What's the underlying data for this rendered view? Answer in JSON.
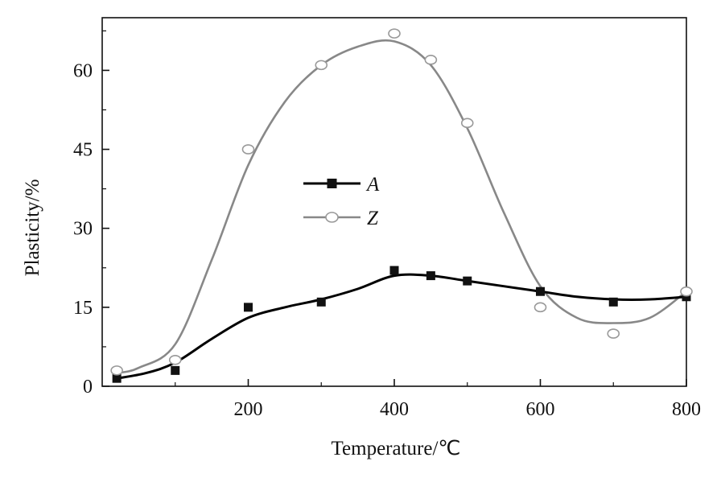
{
  "chart_data": {
    "type": "line",
    "xlabel": "Temperature/℃",
    "ylabel": "Plasticity/%",
    "xlim": [
      0,
      800
    ],
    "ylim": [
      0,
      70
    ],
    "xticks": [
      200,
      400,
      600,
      800
    ],
    "yticks": [
      0,
      15,
      30,
      45,
      60
    ],
    "grid": false,
    "legend_position": "center-left",
    "series": [
      {
        "name": "A",
        "marker": "filled-square",
        "color": "#000000",
        "x": [
          20,
          100,
          200,
          300,
          400,
          450,
          500,
          600,
          700,
          800
        ],
        "y": [
          1.5,
          3,
          15,
          16,
          22,
          21,
          20,
          18,
          16,
          17
        ],
        "curve_x": [
          20,
          60,
          100,
          150,
          200,
          250,
          300,
          350,
          400,
          450,
          500,
          550,
          600,
          650,
          700,
          750,
          800
        ],
        "curve_y": [
          1.5,
          2.5,
          4.5,
          9,
          13,
          15,
          16.5,
          18.5,
          21,
          21,
          20,
          19,
          18,
          17,
          16.5,
          16.5,
          17
        ]
      },
      {
        "name": "Z",
        "marker": "open-circle",
        "color": "#888888",
        "x": [
          20,
          100,
          200,
          300,
          400,
          450,
          500,
          600,
          700,
          800
        ],
        "y": [
          3,
          5,
          45,
          61,
          67,
          62,
          50,
          15,
          10,
          18
        ],
        "curve_x": [
          20,
          50,
          100,
          150,
          200,
          250,
          300,
          350,
          400,
          450,
          500,
          550,
          600,
          650,
          700,
          750,
          800
        ],
        "curve_y": [
          2.5,
          3.5,
          8,
          24,
          42,
          54,
          61,
          64.5,
          65.5,
          61,
          49,
          33,
          19,
          13,
          12,
          13,
          18
        ]
      }
    ]
  }
}
